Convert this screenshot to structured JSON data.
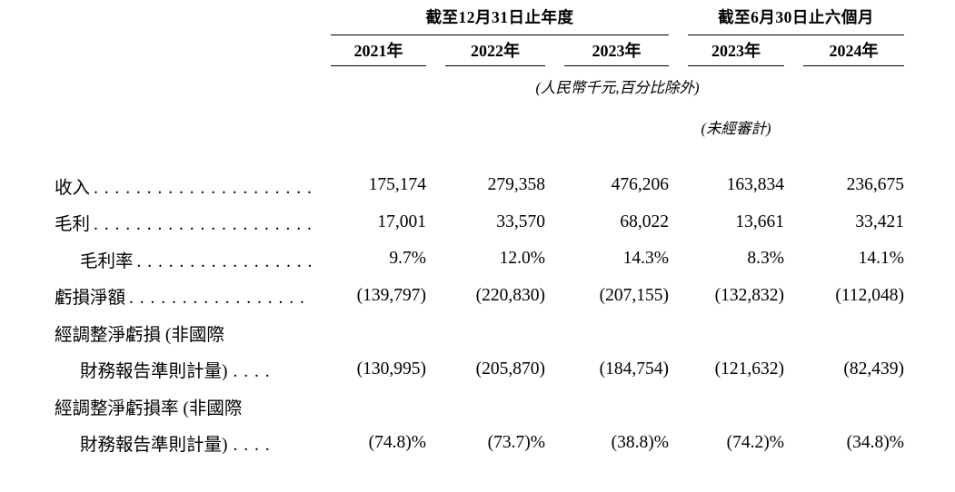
{
  "document": {
    "background": "#ffffff",
    "text_color": "#000000"
  },
  "table": {
    "column_groups": {
      "annual": "截至12月31日止年度",
      "interim": "截至6月30日止六個月"
    },
    "year_headers": [
      "2021年",
      "2022年",
      "2023年",
      "2023年",
      "2024年"
    ],
    "unit_note": "(人民幣千元,百分比除外)",
    "unaudited_note": "(未經審計)",
    "leader_long": ". . . . . . . . . . . . . . . . . . . . . . . . . . . . . . . . . . . . . . . .",
    "rows": [
      {
        "label": "收入",
        "dots": ". . . . . . . . . . . . . . . . . . . . . . . . . . . . . . . . . . . . . . . .",
        "values": [
          "175,174",
          "279,358",
          "476,206",
          "163,834",
          "236,675"
        ]
      },
      {
        "label": "毛利",
        "dots": ". . . . . . . . . . . . . . . . . . . . . . . . . . . . . . . . . . . . . . . .",
        "values": [
          "17,001",
          "33,570",
          "68,022",
          "13,661",
          "33,421"
        ]
      },
      {
        "label": "毛利率",
        "dots": ". . . . . . . . . . . . . . . . . . . . . . . . . . . . . . . . . . . . . . . .",
        "values": [
          "9.7%",
          "12.0%",
          "14.3%",
          "8.3%",
          "14.1%"
        ]
      },
      {
        "label": "虧損淨額",
        "dots": ". . . . . . . . . . . . . . . . . . . . . . . . . . . . . . . . . . . . . . . .",
        "values": [
          "(139,797)",
          "(220,830)",
          "(207,155)",
          "(132,832)",
          "(112,048)"
        ]
      },
      {
        "label": "經調整淨虧損 (非國際",
        "dots": "",
        "values": [
          "",
          "",
          "",
          "",
          ""
        ]
      },
      {
        "label": "財務報告準則計量)",
        "dots": ". . . .",
        "values": [
          "(130,995)",
          "(205,870)",
          "(184,754)",
          "(121,632)",
          "(82,439)"
        ]
      },
      {
        "label": "經調整淨虧損率 (非國際",
        "dots": "",
        "values": [
          "",
          "",
          "",
          "",
          ""
        ]
      },
      {
        "label": "財務報告準則計量)",
        "dots": ". . . .",
        "values": [
          "(74.8)%",
          "(73.7)%",
          "(38.8)%",
          "(74.2)%",
          "(34.8)%"
        ]
      }
    ]
  }
}
